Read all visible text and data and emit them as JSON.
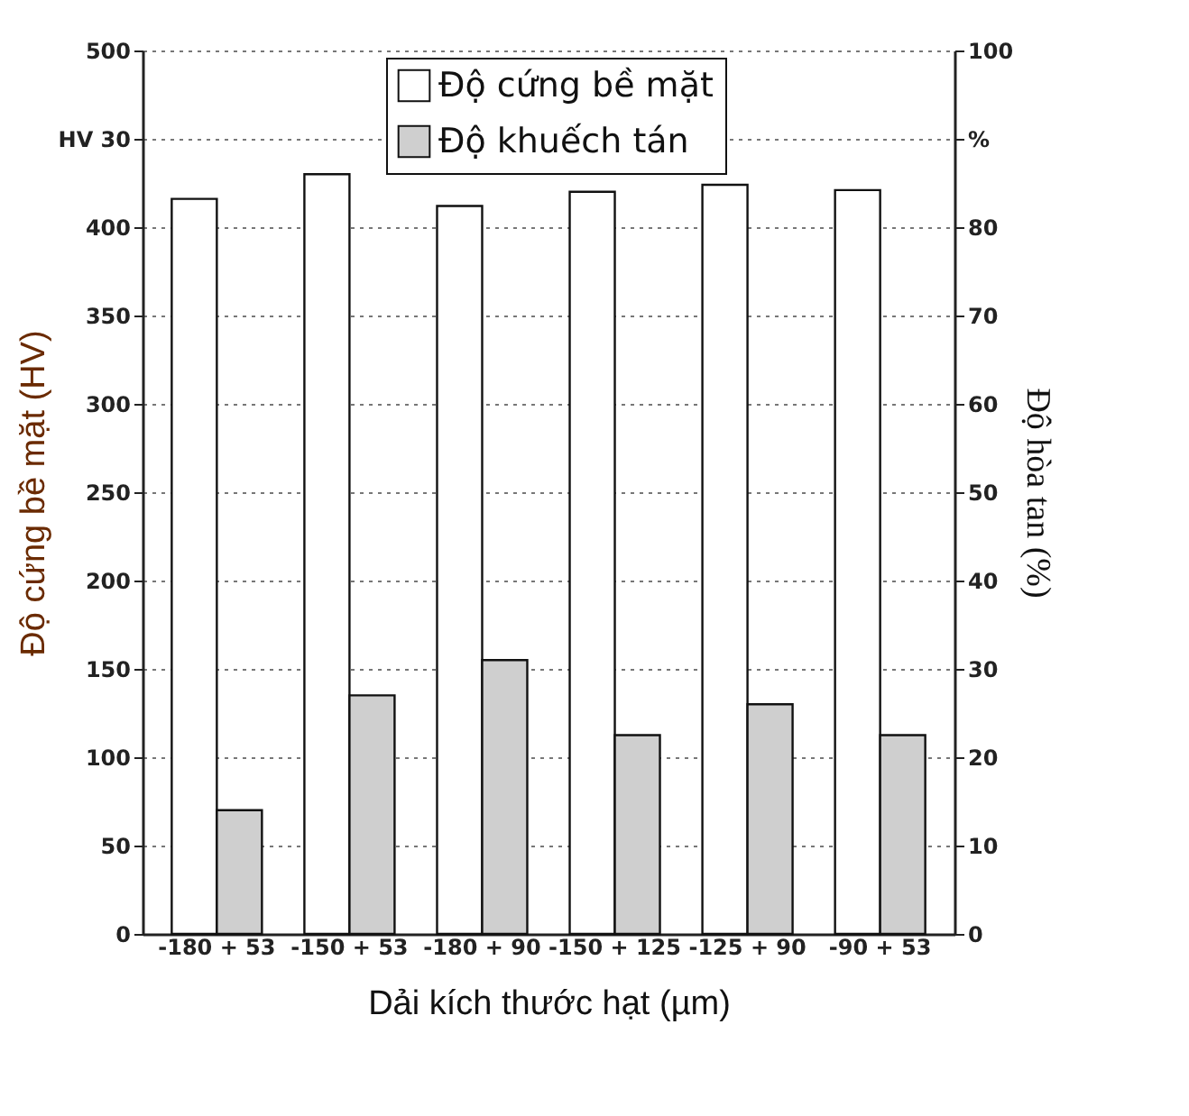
{
  "chart_data": {
    "type": "bar",
    "categories": [
      "-180 + 53",
      "-150 + 53",
      "-180 + 90",
      "-150 + 125",
      "-125 + 90",
      "-90 + 53"
    ],
    "series": [
      {
        "name": "Độ cứng bề mặt",
        "color": "#ffffff",
        "values": [
          416,
          430,
          412,
          420,
          424,
          421
        ]
      },
      {
        "name": "Độ khuếch tán",
        "color": "#cfcfcf",
        "axis": "y2",
        "values": [
          14,
          27,
          31,
          22.5,
          26,
          22.5
        ]
      }
    ],
    "xlabel": "Dải kích thước hạt (µm)",
    "ylabel": "Độ cứng bề mặt (HV)",
    "y2label": "Độ hòa tan (%)",
    "ylim": [
      0,
      500
    ],
    "yticks": [
      0,
      50,
      100,
      150,
      200,
      250,
      300,
      350,
      400,
      {
        "value": 450,
        "label": "HV 30"
      },
      500
    ],
    "y2lim": [
      0,
      100
    ],
    "y2ticks": [
      0,
      10,
      20,
      30,
      40,
      50,
      60,
      70,
      80,
      {
        "value": 90,
        "label": "%"
      },
      100
    ],
    "grid": true,
    "legend": "top"
  }
}
